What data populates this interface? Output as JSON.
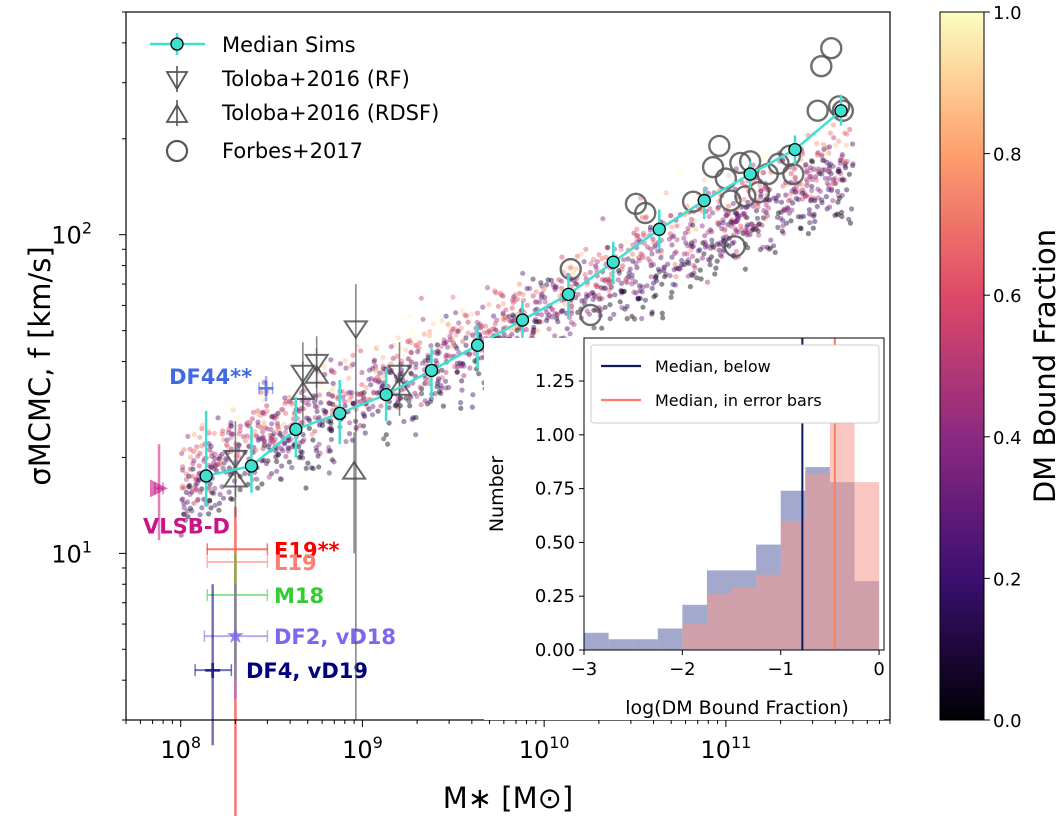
{
  "chart_data": [
    {
      "type": "scatter",
      "xlabel": "M∗ [M⊙]",
      "ylabel": "σMCMC, f [km/s]",
      "xscale": "log",
      "yscale": "log",
      "xlim": [
        50000000.0,
        800000000000.0
      ],
      "ylim": [
        3,
        500
      ],
      "x_tick_labels": [
        "10^8",
        "10^9",
        "10^10",
        "10^11"
      ],
      "y_tick_labels": [
        "10^1",
        "10^2"
      ],
      "legend": {
        "location": "top-left",
        "entries": [
          "Median Sims",
          "Toloba+2016 (RF)",
          "Toloba+2016 (RDSF)",
          "Forbes+2017"
        ]
      },
      "median_sims": {
        "name": "Median Sims",
        "color": "#40e0d0",
        "x": [
          138000000.0,
          245000000.0,
          430000000.0,
          750000000.0,
          1350000000.0,
          2400000000.0,
          4300000000.0,
          7600000000.0,
          13600000000.0,
          24000000000.0,
          43000000000.0,
          76000000000.0,
          136000000000.0,
          240000000000.0,
          430000000000.0
        ],
        "y": [
          17.5,
          18.8,
          24.5,
          27.5,
          31.5,
          37.5,
          45,
          54,
          65,
          82,
          104,
          128,
          155,
          185,
          245
        ],
        "err_lo": [
          14,
          15.5,
          20,
          22,
          26,
          31,
          38,
          46,
          55,
          70,
          90,
          112,
          140,
          166,
          220
        ],
        "err_hi": [
          28,
          25,
          31,
          35,
          38,
          44,
          52,
          62,
          75,
          95,
          120,
          140,
          170,
          205,
          275
        ]
      },
      "toloba_rf": {
        "name": "Toloba+2016 (RF)",
        "x": [
          200000000.0,
          470000000.0,
          560000000.0,
          920000000.0,
          1600000000.0
        ],
        "y": [
          20,
          37,
          40,
          51,
          37
        ],
        "err_lo": [
          15,
          28,
          33,
          3,
          30
        ],
        "err_hi": [
          26,
          46,
          48,
          70,
          46
        ]
      },
      "toloba_rdsf": {
        "name": "Toloba+2016 (RDSF)",
        "x": [
          200000000.0,
          470000000.0,
          560000000.0,
          900000000.0,
          1600000000.0
        ],
        "y": [
          17,
          32,
          36,
          18,
          33
        ],
        "err_lo": [
          13,
          25,
          30,
          10,
          27
        ],
        "err_hi": [
          22,
          40,
          44,
          24,
          40
        ]
      },
      "forbes2017": {
        "name": "Forbes+2017",
        "x": [
          14000000000.0,
          18000000000.0,
          32000000000.0,
          36000000000.0,
          66000000000.0,
          85000000000.0,
          92000000000.0,
          100000000000.0,
          106000000000.0,
          112000000000.0,
          120000000000.0,
          128000000000.0,
          136000000000.0,
          152000000000.0,
          170000000000.0,
          195000000000.0,
          225000000000.0,
          235000000000.0,
          320000000000.0,
          335000000000.0,
          380000000000.0,
          420000000000.0,
          440000000000.0
        ],
        "y": [
          78,
          56,
          125,
          117,
          127,
          163,
          190,
          150,
          128,
          92,
          168,
          132,
          170,
          136,
          155,
          167,
          177,
          155,
          245,
          338,
          385,
          253,
          245
        ]
      },
      "observations": [
        {
          "label": "DF44**",
          "color": "#4169e1",
          "x": 295000000.0,
          "y": 33,
          "xerr": [
            270000000.0,
            320000000.0
          ],
          "yerr": [
            30,
            36
          ]
        },
        {
          "label": "VLSB-D",
          "color": "#c71585",
          "x": 76000000.0,
          "y": 16,
          "xerr": [
            72000000.0,
            80000000.0
          ],
          "yerr": [
            11,
            22
          ]
        },
        {
          "label": "E19**",
          "color": "#ff0000",
          "x": 200000000.0,
          "y": 10.3,
          "xerr": [
            140000000.0,
            300000000.0
          ],
          "yerr": [
            1.5,
            14
          ]
        },
        {
          "label": "L19",
          "color": "#fa8072",
          "x": 200000000.0,
          "y": 9.4,
          "xerr": [
            140000000.0,
            300000000.0
          ],
          "yerr": [
            3,
            13
          ]
        },
        {
          "label": "M18",
          "color": "#32cd32",
          "x": 200000000.0,
          "y": 7.4,
          "xerr": [
            140000000.0,
            300000000.0
          ],
          "yerr": [
            4,
            10
          ]
        },
        {
          "label": "DF2, vD18",
          "color": "#7b68ee",
          "x": 200000000.0,
          "y": 5.5,
          "xerr": [
            135000000.0,
            300000000.0
          ],
          "yerr": [
            3.5,
            8
          ]
        },
        {
          "label": "DF4, vD19",
          "color": "#000080",
          "x": 150000000.0,
          "y": 4.3,
          "xerr": [
            120000000.0,
            190000000.0
          ],
          "yerr": [
            2.5,
            8
          ]
        }
      ]
    },
    {
      "type": "histogram",
      "xlabel": "log(DM Bound Fraction)",
      "ylabel": "Number",
      "xlim": [
        -3,
        0.05
      ],
      "ylim": [
        0,
        1.45
      ],
      "x_tick_labels": [
        "−3",
        "−2",
        "−1",
        "0"
      ],
      "y_tick_labels": [
        "0.00",
        "0.25",
        "0.50",
        "0.75",
        "1.00",
        "1.25"
      ],
      "legend": {
        "location": "top-left",
        "entries": [
          "Median, below",
          "Median, in error bars"
        ]
      },
      "bin_edges": [
        -3.0,
        -2.75,
        -2.5,
        -2.25,
        -2.0,
        -1.75,
        -1.5,
        -1.25,
        -1.0,
        -0.75,
        -0.5,
        -0.25,
        0.0
      ],
      "series": [
        {
          "name": "Median, below",
          "color": "#7c84b8",
          "values": [
            0.08,
            0.05,
            0.05,
            0.1,
            0.21,
            0.37,
            0.37,
            0.49,
            0.74,
            0.85,
            0.78,
            0.32
          ],
          "median": -0.78
        },
        {
          "name": "Median, in error bars",
          "color": "#f4978e",
          "values": [
            0.0,
            0.0,
            0.0,
            0.0,
            0.12,
            0.26,
            0.29,
            0.35,
            0.6,
            0.82,
            1.38,
            0.78
          ],
          "median": -0.45
        }
      ]
    },
    {
      "type": "colorbar",
      "label": "DM Bound Fraction",
      "range": [
        0.0,
        1.0
      ],
      "tick_labels": [
        "0.0",
        "0.2",
        "0.4",
        "0.6",
        "0.8",
        "1.0"
      ],
      "colormap": [
        "#000004",
        "#3b0f70",
        "#8c2981",
        "#de4968",
        "#fe9f6d",
        "#fcfdbf"
      ]
    }
  ]
}
